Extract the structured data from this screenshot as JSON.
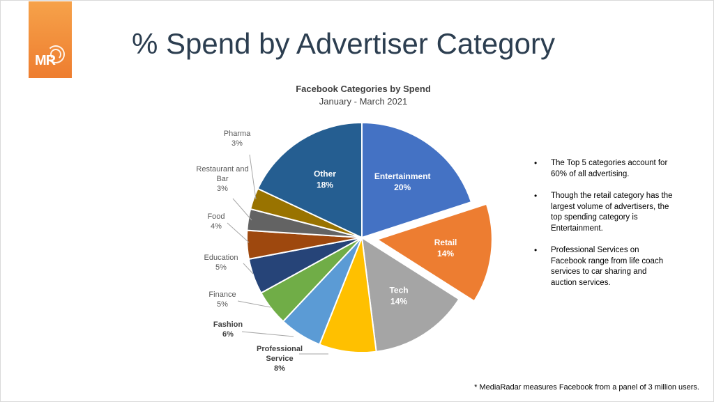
{
  "slide": {
    "title": "% Spend by Advertiser Category",
    "logo_text": "MR",
    "brand_color": "#ef7f2f",
    "bullets": [
      "The Top 5 categories account for 60% of all advertising.",
      "Though the retail category has the largest volume of advertisers, the top spending category is Entertainment.",
      "Professional Services on Facebook range from life coach services to car sharing and auction services."
    ],
    "footnote": "* MediaRadar measures Facebook from a panel of 3 million users."
  },
  "chart_data": {
    "type": "pie",
    "title": "Facebook Categories by Spend",
    "subtitle": "January - March 2021",
    "slices": [
      {
        "name": "Entertainment",
        "value": 20,
        "label": "20%",
        "color": "#4472c4",
        "label_inside": true,
        "exploded": false
      },
      {
        "name": "Retail",
        "value": 14,
        "label": "14%",
        "color": "#ed7d31",
        "label_inside": true,
        "exploded": true
      },
      {
        "name": "Tech",
        "value": 14,
        "label": "14%",
        "color": "#a5a5a5",
        "label_inside": true,
        "exploded": false
      },
      {
        "name": "Professional Service",
        "value": 8,
        "label": "8%",
        "color": "#ffc000",
        "label_inside": false,
        "exploded": false
      },
      {
        "name": "Fashion",
        "value": 6,
        "label": "6%",
        "color": "#5b9bd5",
        "label_inside": false,
        "exploded": false
      },
      {
        "name": "Finance",
        "value": 5,
        "label": "5%",
        "color": "#70ad47",
        "label_inside": false,
        "exploded": false
      },
      {
        "name": "Education",
        "value": 5,
        "label": "5%",
        "color": "#264478",
        "label_inside": false,
        "exploded": false
      },
      {
        "name": "Food",
        "value": 4,
        "label": "4%",
        "color": "#9e480e",
        "label_inside": false,
        "exploded": false
      },
      {
        "name": "Restaurant and Bar",
        "value": 3,
        "label": "3%",
        "color": "#636363",
        "label_inside": false,
        "exploded": false
      },
      {
        "name": "Pharma",
        "value": 3,
        "label": "3%",
        "color": "#997300",
        "label_inside": false,
        "exploded": false
      },
      {
        "name": "Other",
        "value": 18,
        "label": "18%",
        "color": "#255e91",
        "label_inside": true,
        "exploded": false
      }
    ]
  }
}
